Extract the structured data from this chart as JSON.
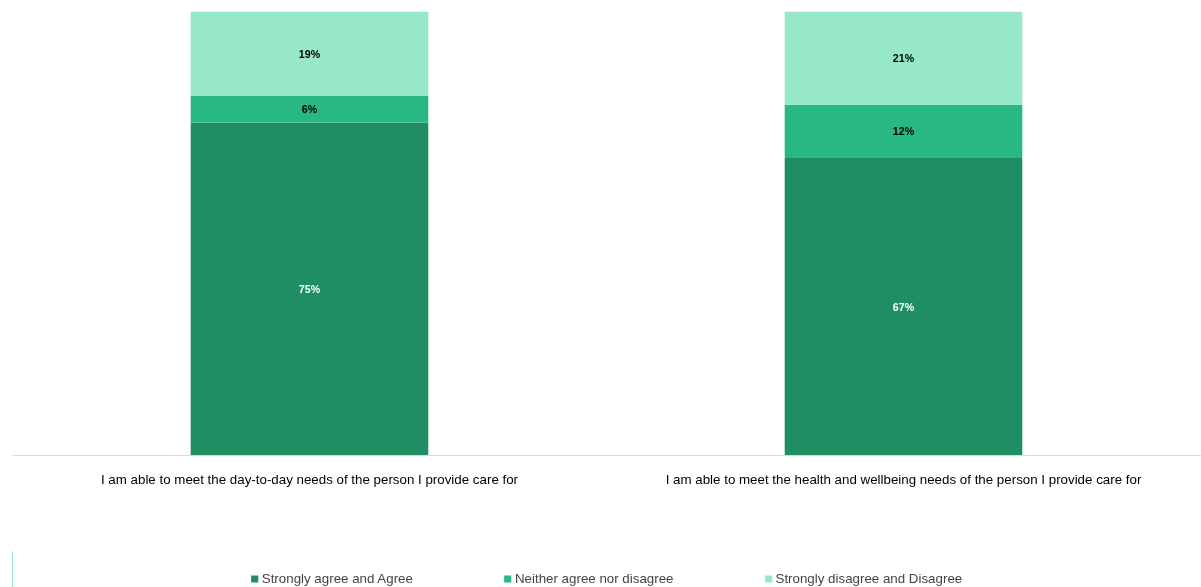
{
  "chart_data": {
    "type": "bar",
    "stacked": true,
    "categories": [
      "I am able to meet the day-to-day needs of the person I provide care for",
      "I am able to meet the health and wellbeing needs of the person I provide care for"
    ],
    "series": [
      {
        "name": "Strongly agree and Agree",
        "color": "#1f8f63",
        "values": [
          75,
          67
        ],
        "value_labels": [
          "75%",
          "67%"
        ]
      },
      {
        "name": "Neither agree nor disagree",
        "color": "#27b883",
        "values": [
          6,
          12
        ],
        "value_labels": [
          "6%",
          "12%"
        ]
      },
      {
        "name": "Strongly disagree and Disagree",
        "color": "#96e8c9",
        "values": [
          19,
          21
        ],
        "value_labels": [
          "19%",
          "21%"
        ]
      }
    ],
    "ylim": [
      0,
      100
    ],
    "tick_labels": "x",
    "grid": false,
    "legend": "bottom"
  }
}
